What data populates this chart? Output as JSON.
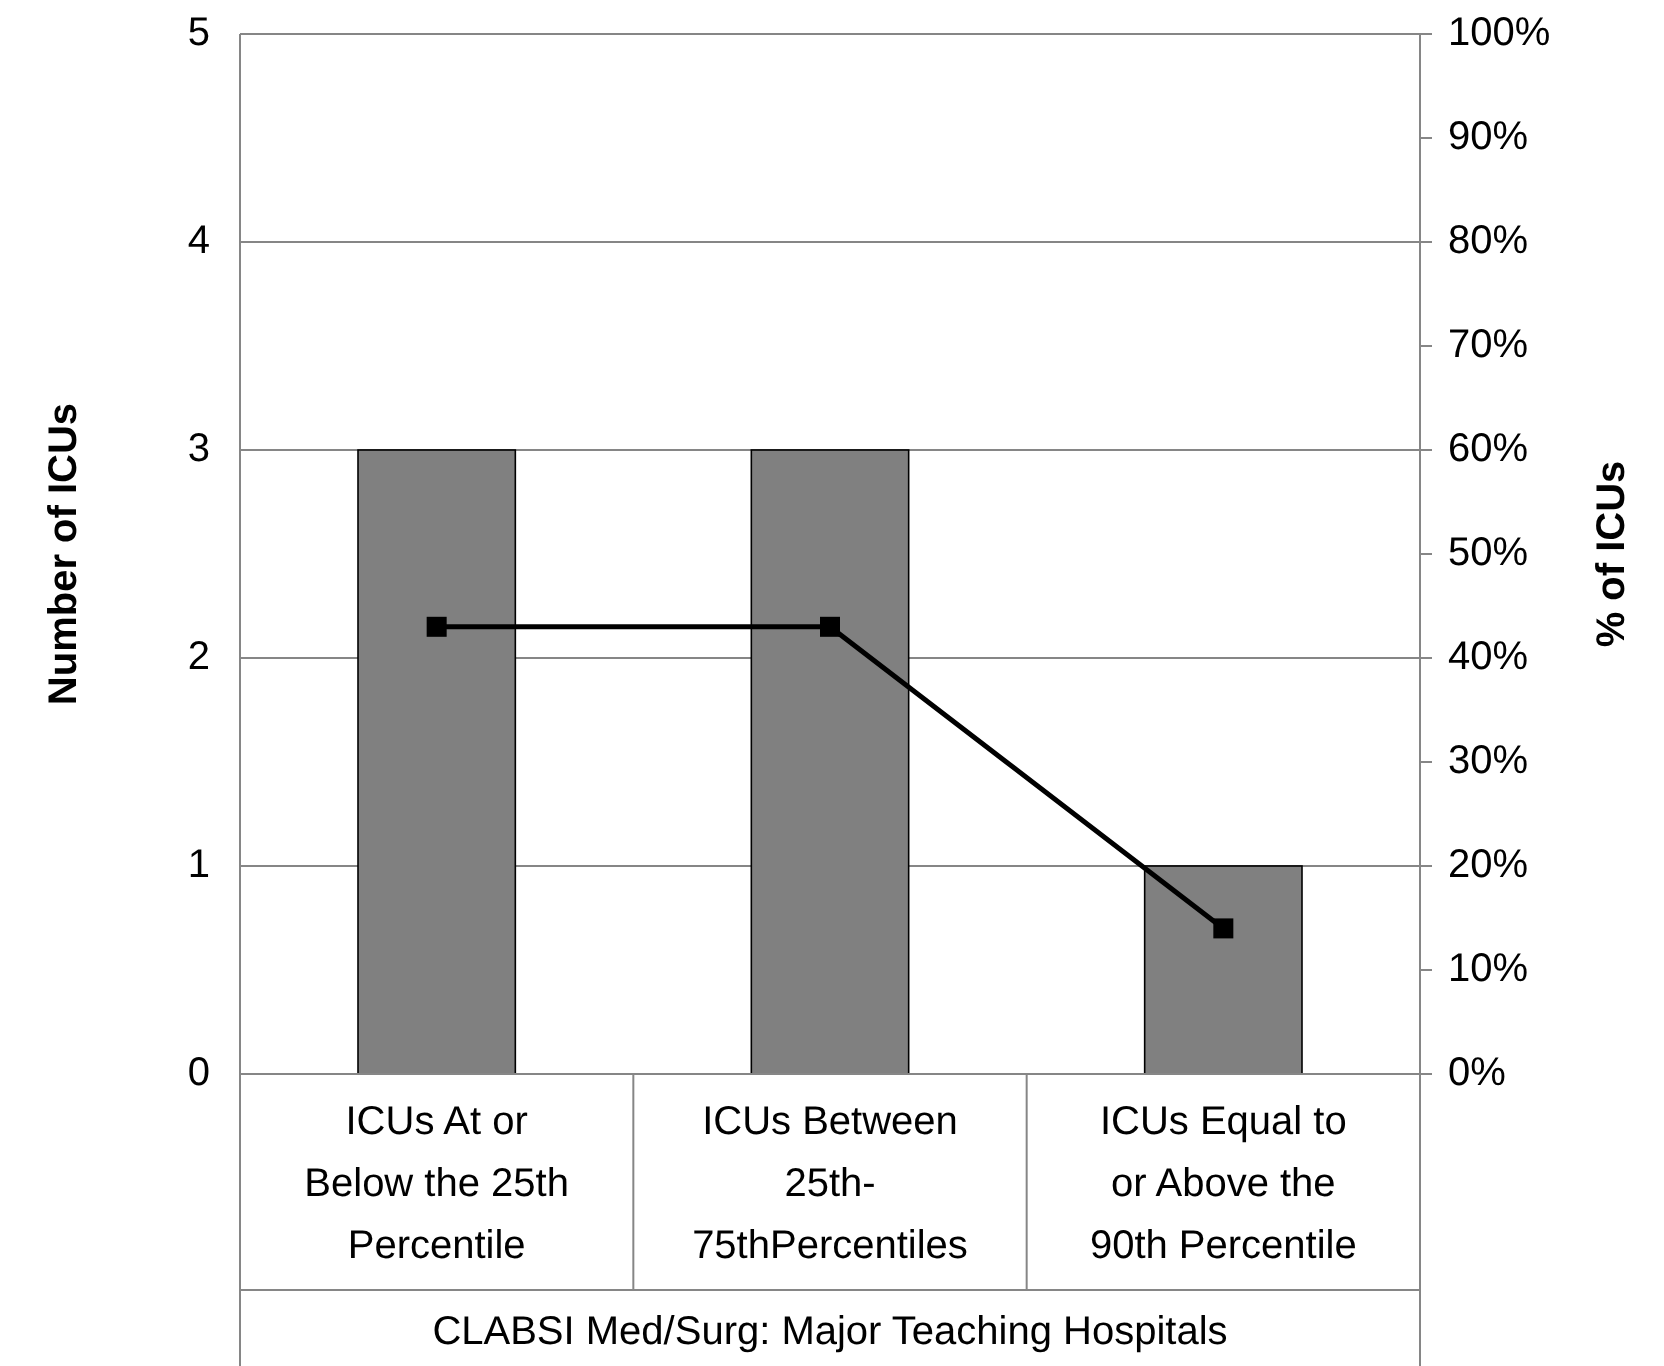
{
  "chart_data": {
    "type": "bar",
    "xlabel": "CLABSI  Med/Surg: Major Teaching Hospitals",
    "ylabel": "Number of ICUs",
    "y2label": "% of ICUs",
    "categories": [
      "ICUs At or Below the 25th Percentile",
      "ICUs Between 25th-75thPercentiles",
      "ICUs Equal to or Above the 90th Percentile"
    ],
    "series": [
      {
        "color": "#808080",
        "values": [
          3,
          3,
          1
        ]
      },
      {
        "type": "line",
        "axis": "y2",
        "color": "#000000",
        "marker": "square",
        "line_style": "solid",
        "values": [
          43,
          43,
          14
        ]
      }
    ],
    "ylim": [
      0,
      5
    ],
    "yticks": [
      0,
      1,
      2,
      3,
      4,
      5
    ],
    "y2lim": [
      0,
      100
    ],
    "y2ticks": [
      {
        "value": 0,
        "label": "0%"
      },
      {
        "value": 10,
        "label": "10%"
      },
      {
        "value": 20,
        "label": "20%"
      },
      {
        "value": 30,
        "label": "30%"
      },
      {
        "value": 40,
        "label": "40%"
      },
      {
        "value": 50,
        "label": "50%"
      },
      {
        "value": 60,
        "label": "60%"
      },
      {
        "value": 70,
        "label": "70%"
      },
      {
        "value": 80,
        "label": "80%"
      },
      {
        "value": 90,
        "label": "90%"
      },
      {
        "value": 100,
        "label": "100%"
      }
    ],
    "grid": "y"
  }
}
